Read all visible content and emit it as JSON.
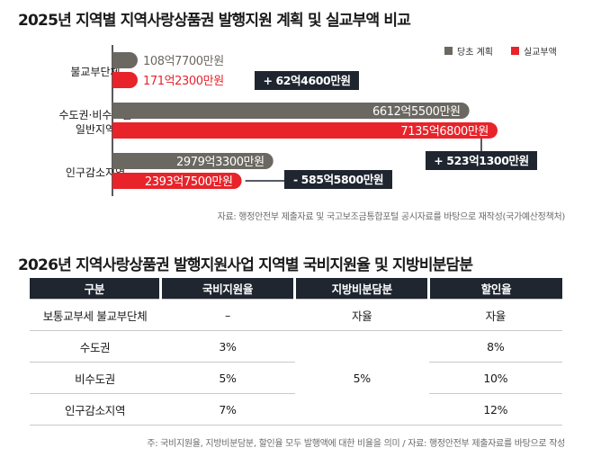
{
  "title1": "2025년 지역별 지역사랑상품권 발행지원 계획 및 실교부액 비교",
  "title2": "2026년 지역사랑상품권 발행지원사업 지역별 국비지원율 및 지방비분담분",
  "source1": "자료: 행정안전부 제출자료 및 국고보조금통합포털 공시자료를 바탕으로 재작성(국가예산정책처)",
  "source2": "주: 국비지원율, 지방비분담분, 할인율 모두 발행액에 대한 비율을 의미 / 자료: 행정안전부 제출자료를 바탕으로 작성",
  "colors": {
    "plan": "#6b6862",
    "actual": "#e8232a",
    "diff_box": "#1f2630"
  },
  "chart_data": {
    "type": "bar",
    "orientation": "horizontal",
    "unit": "억원",
    "categories": [
      "불교부단체",
      "수도권·비수도권\n일반지역",
      "인구감소지역"
    ],
    "series": [
      {
        "name": "당초 계획",
        "values": [
          108.77,
          6612.55,
          2979.33
        ],
        "labels": [
          "108억7700만원",
          "6612억5500만원",
          "2979억3300만원"
        ]
      },
      {
        "name": "실교부액",
        "values": [
          171.23,
          7135.68,
          2393.75
        ],
        "labels": [
          "171억2300만원",
          "7135억6800만원",
          "2393억7500만원"
        ]
      }
    ],
    "differences": [
      "+ 62억4600만원",
      "+ 523억1300만원",
      "- 585억5800만원"
    ],
    "xlim": [
      0,
      7135.68
    ],
    "legend_position": "top-right",
    "grid": false
  },
  "table": {
    "headers": [
      "구분",
      "국비지원율",
      "지방비분담분",
      "할인율"
    ],
    "rows": [
      [
        "보통교부세 불교부단체",
        "–",
        "자율",
        "자율"
      ],
      [
        "수도권",
        "3%",
        "",
        "8%"
      ],
      [
        "비수도권",
        "5%",
        "5%",
        "10%"
      ],
      [
        "인구감소지역",
        "7%",
        "",
        "12%"
      ]
    ]
  }
}
